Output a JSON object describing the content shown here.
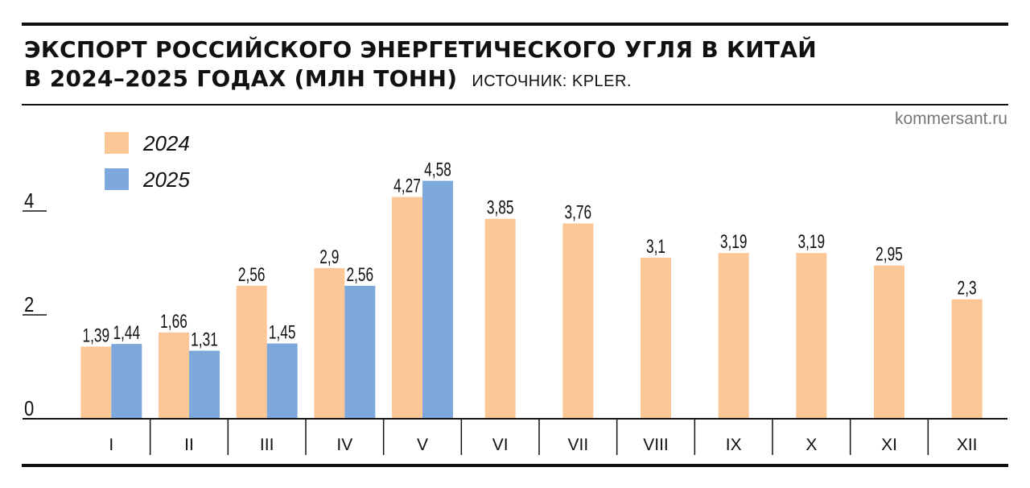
{
  "header": {
    "title_line1": "ЭКСПОРТ РОССИЙСКОГО ЭНЕРГЕТИЧЕСКОГО УГЛЯ В КИТАЙ",
    "title_line2": "В 2024–2025 ГОДАХ (МЛН ТОНН)",
    "source": "ИСТОЧНИК: KPLER.",
    "credit": "kommersant.ru"
  },
  "colors": {
    "s2024": "#fcc797",
    "s2025": "#7ca8dc",
    "ink": "#111111"
  },
  "chart_data": {
    "type": "bar",
    "title": "ЭКСПОРТ РОССИЙСКОГО ЭНЕРГЕТИЧЕСКОГО УГЛЯ В КИТАЙ В 2024–2025 ГОДАХ (МЛН ТОНН)",
    "categories": [
      "I",
      "II",
      "III",
      "IV",
      "V",
      "VI",
      "VII",
      "VIII",
      "IX",
      "X",
      "XI",
      "XII"
    ],
    "series": [
      {
        "name": "2024",
        "values": [
          1.39,
          1.66,
          2.56,
          2.9,
          4.27,
          3.85,
          3.76,
          3.1,
          3.19,
          3.19,
          2.95,
          2.3
        ],
        "labels": [
          "1,39",
          "1,66",
          "2,56",
          "2,9",
          "4,27",
          "3,85",
          "3,76",
          "3,1",
          "3,19",
          "3,19",
          "2,95",
          "2,3"
        ]
      },
      {
        "name": "2025",
        "values": [
          1.44,
          1.31,
          1.45,
          2.56,
          4.58,
          null,
          null,
          null,
          null,
          null,
          null,
          null
        ],
        "labels": [
          "1,44",
          "1,31",
          "1,45",
          "2,56",
          "4,58",
          "",
          "",
          "",
          "",
          "",
          "",
          ""
        ]
      }
    ],
    "yticks": [
      {
        "value": 0,
        "label": "0"
      },
      {
        "value": 2,
        "label": "2"
      },
      {
        "value": 4,
        "label": "4"
      }
    ],
    "ylim": [
      0,
      4.8
    ],
    "xlabel": "",
    "ylabel": "",
    "legend_position": "top-left",
    "grid": false
  }
}
